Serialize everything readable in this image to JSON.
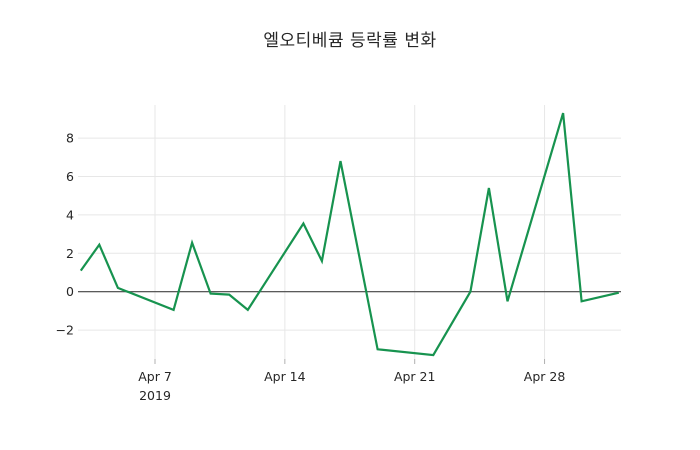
{
  "chart_data": {
    "type": "line",
    "title": "엘오티베큠 등락률 변화",
    "x": [
      "2019-04-03",
      "2019-04-04",
      "2019-04-05",
      "2019-04-08",
      "2019-04-09",
      "2019-04-10",
      "2019-04-11",
      "2019-04-12",
      "2019-04-15",
      "2019-04-16",
      "2019-04-17",
      "2019-04-19",
      "2019-04-22",
      "2019-04-24",
      "2019-04-25",
      "2019-04-26",
      "2019-04-29",
      "2019-04-30",
      "2019-05-02"
    ],
    "y": [
      1.1,
      2.45,
      0.2,
      -0.95,
      2.55,
      -0.1,
      -0.15,
      -0.95,
      3.55,
      1.6,
      6.8,
      -3.0,
      -3.3,
      0.0,
      5.4,
      -0.5,
      9.3,
      -0.5,
      -0.05
    ],
    "xticks": [
      {
        "date": "2019-04-07",
        "label": "Apr 7",
        "sublabel": "2019"
      },
      {
        "date": "2019-04-14",
        "label": "Apr 14"
      },
      {
        "date": "2019-04-21",
        "label": "Apr 21"
      },
      {
        "date": "2019-04-28",
        "label": "Apr 28"
      }
    ],
    "yticks": [
      {
        "value": -2,
        "label": "−2"
      },
      {
        "value": 0,
        "label": "0"
      },
      {
        "value": 2,
        "label": "2"
      },
      {
        "value": 4,
        "label": "4"
      },
      {
        "value": 6,
        "label": "6"
      },
      {
        "value": 8,
        "label": "8"
      }
    ],
    "ylim": [
      -3.5,
      9.7
    ],
    "xlabel": "",
    "ylabel": "",
    "grid": true,
    "legend": false,
    "zeroline": true,
    "colors": {
      "line": "#17934f",
      "grid": "#e7e7e7",
      "zero_line": "#444444",
      "text": "#262626",
      "tick": "#b0b0b0"
    }
  }
}
